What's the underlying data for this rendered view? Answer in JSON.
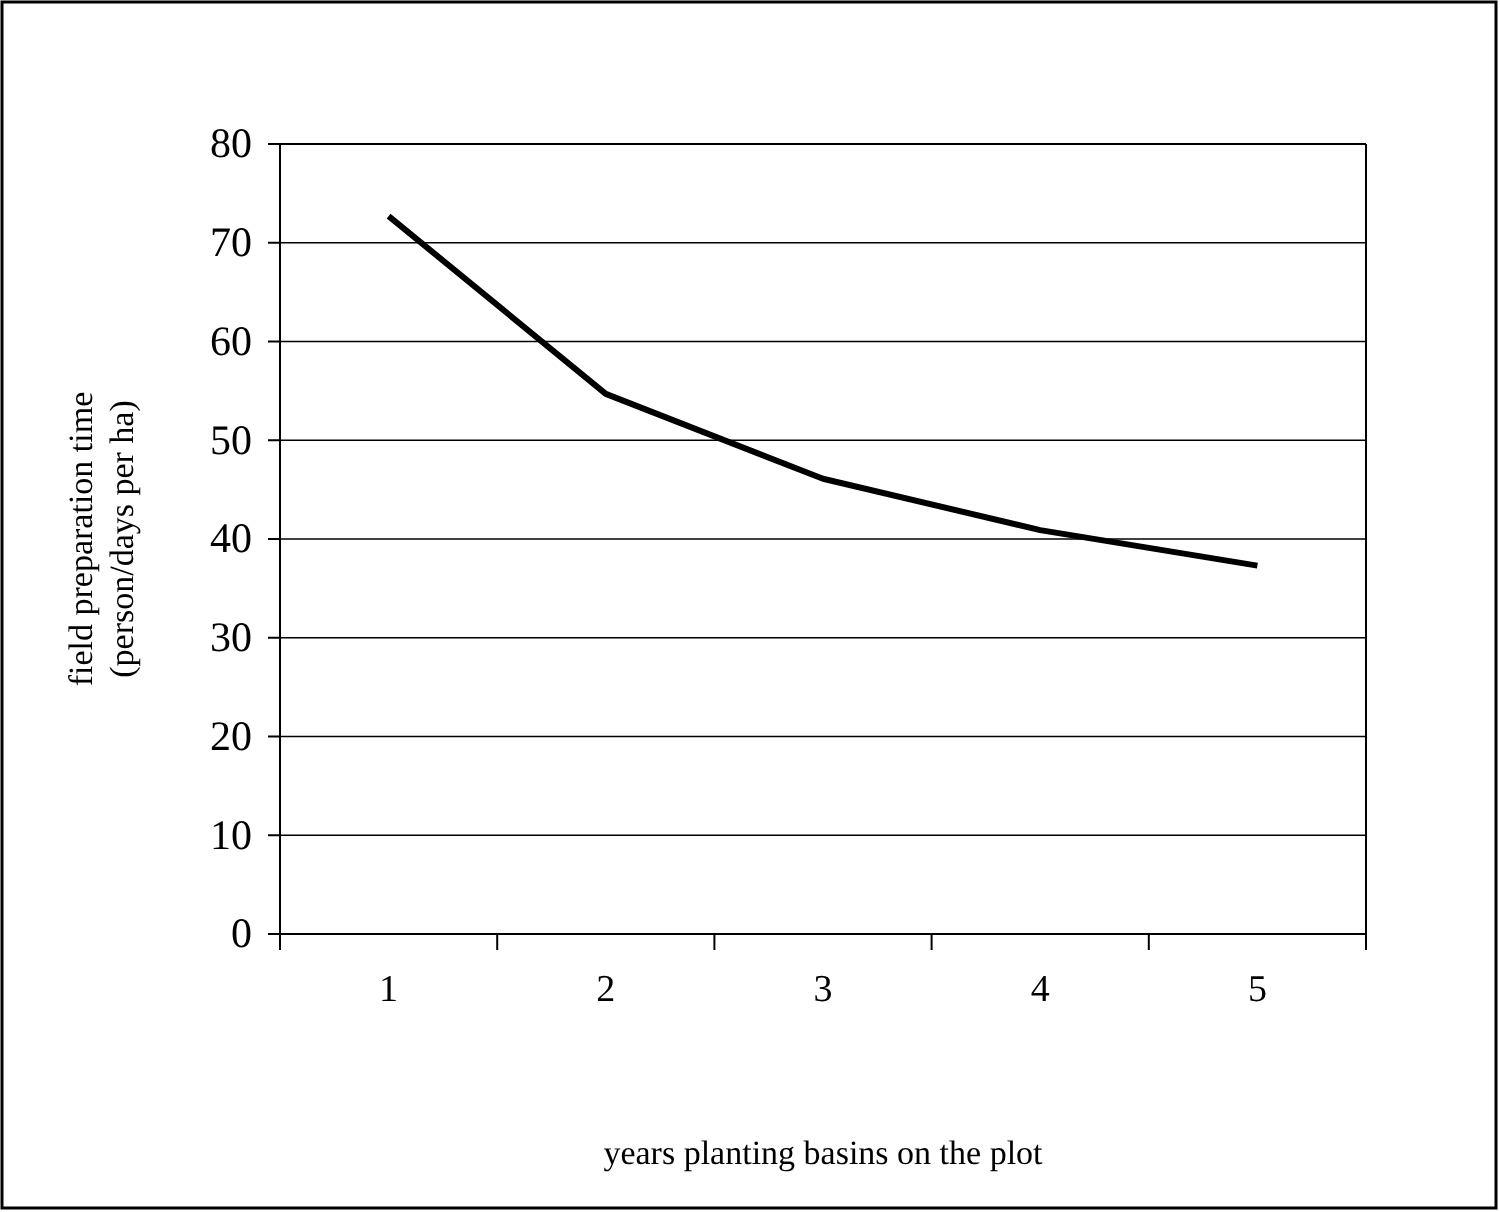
{
  "chart_data": {
    "type": "line",
    "xlabel": "years planting basins on the plot",
    "ylabel": "field preparation time\n(person/days per ha)",
    "categories": [
      "1",
      "2",
      "3",
      "4",
      "5"
    ],
    "series": [
      {
        "color": "#000000",
        "values": [
          72.7,
          54.7,
          46.1,
          40.9,
          37.3
        ]
      }
    ],
    "ylim": [
      0,
      80
    ],
    "yticks": [
      0,
      10,
      20,
      30,
      40,
      50,
      60,
      70,
      80
    ],
    "grid": "y",
    "marker": "none",
    "line_style": "solid"
  }
}
